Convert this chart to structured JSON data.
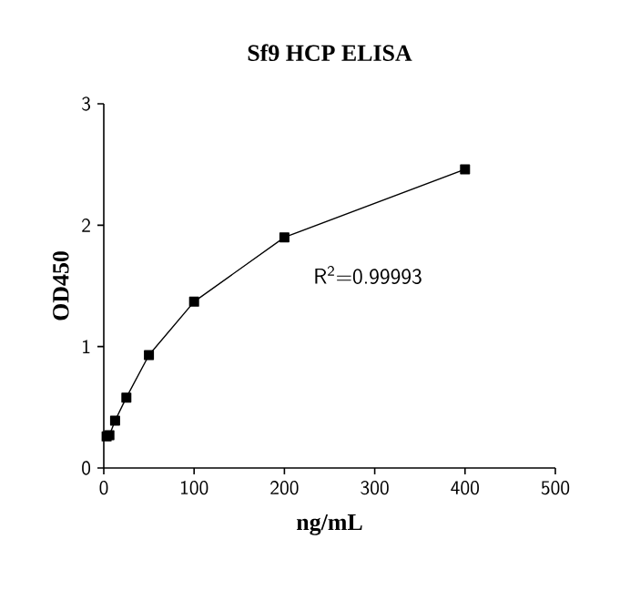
{
  "chart_data": {
    "type": "line",
    "title": "Sf9 HCP ELISA",
    "xlabel": "ng/mL",
    "ylabel": "OD450",
    "annotations": [
      "R$^{2}$=0.99993"
    ],
    "series": [
      {
        "x": [
          3.125,
          6.25,
          12.5,
          25,
          50,
          100,
          200,
          400
        ],
        "values": [
          0.26,
          0.27,
          0.39,
          0.58,
          0.93,
          1.37,
          1.9,
          2.46
        ],
        "color": "#000000"
      }
    ],
    "xlim": [
      0,
      500
    ],
    "ylim": [
      0,
      3
    ],
    "xticks": [
      0,
      100,
      200,
      300,
      400,
      500
    ],
    "yticks": [
      0,
      1,
      2,
      3
    ],
    "marker": "square",
    "line_style": "solid"
  }
}
